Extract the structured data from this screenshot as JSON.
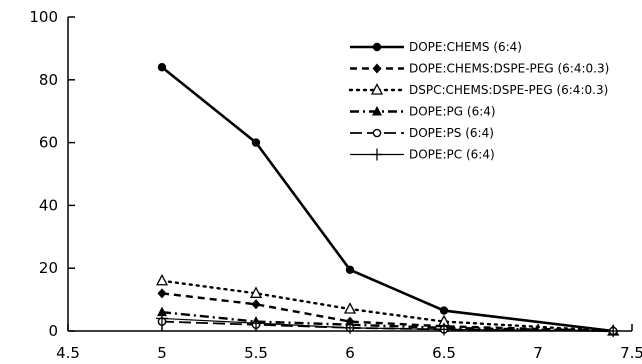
{
  "chart_data": {
    "type": "line",
    "xlim": [
      4.5,
      7.5
    ],
    "ylim": [
      0,
      100
    ],
    "x_ticks": [
      4.5,
      5,
      5.5,
      6,
      6.5,
      7,
      7.5
    ],
    "y_ticks": [
      0,
      20,
      40,
      60,
      80,
      100
    ],
    "x_tick_labels": [
      "4.5",
      "5",
      "5.5",
      "6",
      "6.5",
      "7",
      "7.5"
    ],
    "y_tick_labels": [
      "0",
      "20",
      "40",
      "60",
      "80",
      "100"
    ],
    "grid": false,
    "legend_position": "top-right",
    "series": [
      {
        "name": "DOPE:CHEMS (6:4)",
        "marker": "filled-circle",
        "dash": "solid",
        "x": [
          5,
          5.5,
          6,
          6.5,
          7.4
        ],
        "y": [
          84,
          60,
          19.5,
          6.5,
          0
        ]
      },
      {
        "name": "DOPE:CHEMS:DSPE-PEG (6:4:0.3)",
        "marker": "filled-diamond",
        "dash": "dashed",
        "x": [
          5,
          5.5,
          6,
          6.5,
          7.4
        ],
        "y": [
          12,
          8.5,
          3,
          1.5,
          0
        ]
      },
      {
        "name": "DSPC:CHEMS:DSPE-PEG (6:4:0.3)",
        "marker": "open-triangle",
        "dash": "dotted",
        "x": [
          5,
          5.5,
          6,
          6.5,
          7.4
        ],
        "y": [
          16,
          12,
          7,
          3,
          0
        ]
      },
      {
        "name": "DOPE:PG (6:4)",
        "marker": "filled-triangle",
        "dash": "dash-dot",
        "x": [
          5,
          5.5,
          6,
          6.5,
          7.4
        ],
        "y": [
          6,
          3,
          2,
          1,
          0
        ]
      },
      {
        "name": "DOPE:PS (6:4)",
        "marker": "open-circle",
        "dash": "long-dash",
        "x": [
          5,
          5.5,
          6,
          6.5,
          7.4
        ],
        "y": [
          3,
          2,
          1,
          0.5,
          0
        ]
      },
      {
        "name": "DOPE:PC (6:4)",
        "marker": "plus",
        "dash": "solid-thin",
        "x": [
          5,
          5.5,
          6,
          6.5,
          7.4
        ],
        "y": [
          4,
          2.5,
          1,
          0.5,
          0
        ]
      }
    ]
  }
}
